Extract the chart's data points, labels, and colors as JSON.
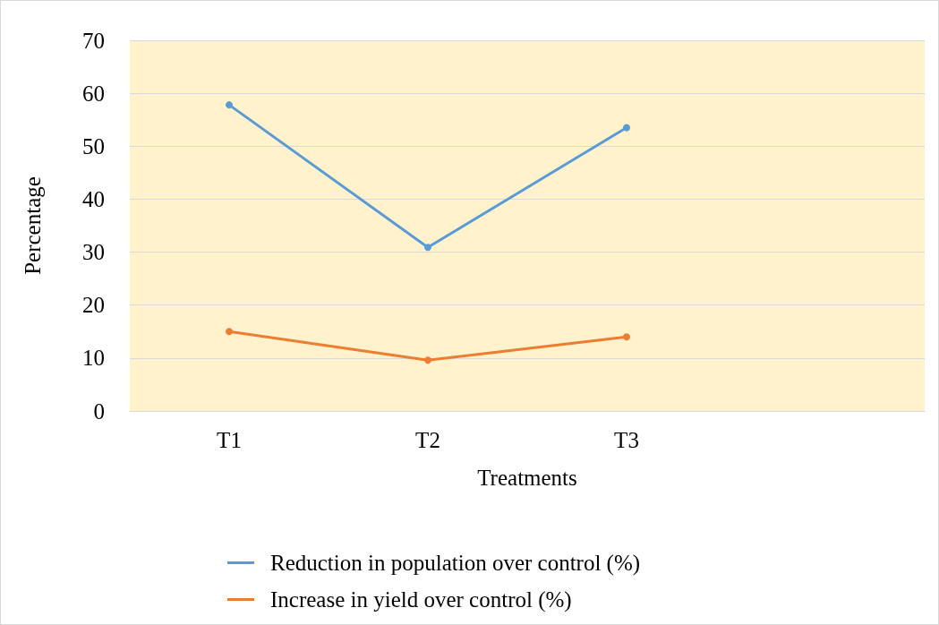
{
  "chart_data": {
    "type": "line",
    "xlabel": "Treatments",
    "ylabel": "Percentage",
    "categories": [
      "T1",
      "T2",
      "T3",
      null
    ],
    "series": [
      {
        "name": "Reduction in population over control (%)",
        "color": "#5b9bd5",
        "values": [
          57.8,
          30.9,
          53.5,
          null
        ]
      },
      {
        "name": "Increase in yield over control (%)",
        "color": "#ed7d31",
        "values": [
          15.0,
          9.6,
          14.0,
          null
        ]
      }
    ],
    "ylim": [
      0,
      70
    ],
    "yticks": [
      0,
      10,
      20,
      30,
      40,
      50,
      60,
      70
    ],
    "grid": "y",
    "legend": "bottom",
    "marker": "circle",
    "line_style": "solid"
  }
}
